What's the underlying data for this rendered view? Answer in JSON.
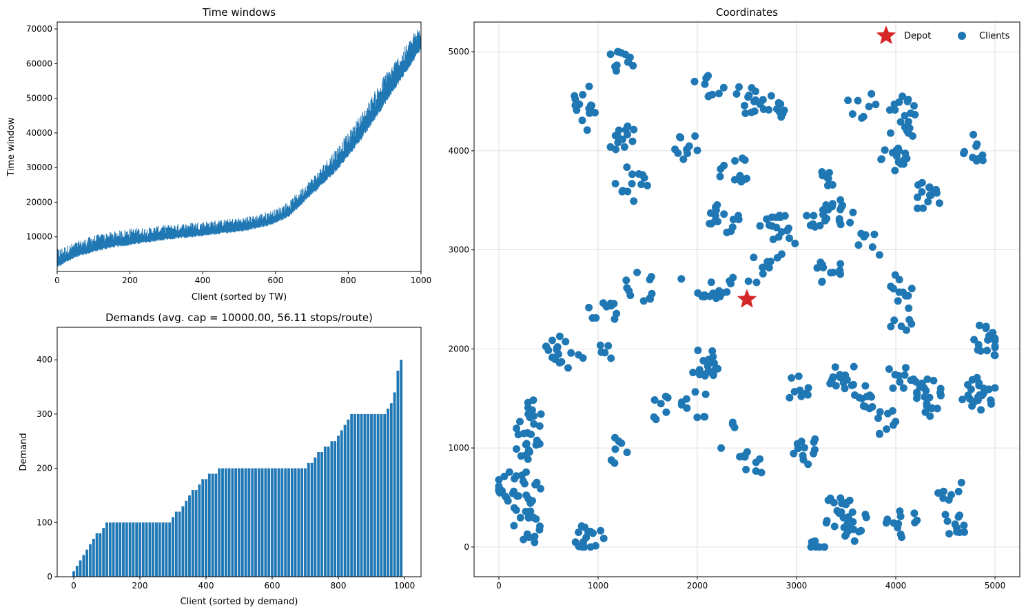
{
  "colors": {
    "series": "#1f77b4",
    "depot": "#d62728",
    "axis": "#000000"
  },
  "chart_data": [
    {
      "type": "line",
      "title": "Time windows",
      "xlabel": "Client (sorted by TW)",
      "ylabel": "Time window",
      "xlim": [
        0,
        1000
      ],
      "ylim": [
        0,
        72000
      ],
      "xticks": [
        "0",
        "200",
        "400",
        "600",
        "800",
        "1000"
      ],
      "yticks": [
        "10000",
        "20000",
        "30000",
        "40000",
        "50000",
        "60000",
        "70000"
      ],
      "grid": false,
      "series": [
        {
          "x": [
            0,
            50,
            100,
            150,
            200,
            250,
            300,
            350,
            400,
            450,
            500,
            550,
            600,
            640,
            680,
            720,
            760,
            800,
            850,
            900,
            950,
            1000
          ],
          "lower": [
            1000,
            4000,
            5500,
            6800,
            7500,
            8300,
            9000,
            9600,
            10200,
            10800,
            11400,
            12300,
            13800,
            16000,
            20000,
            24000,
            28000,
            33000,
            40000,
            48000,
            56000,
            64000
          ],
          "upper": [
            6500,
            8500,
            10500,
            11500,
            12500,
            12800,
            13500,
            14000,
            14500,
            15000,
            15500,
            16500,
            18000,
            20500,
            25000,
            29500,
            35000,
            40000,
            48000,
            57000,
            64000,
            72000
          ]
        }
      ]
    },
    {
      "type": "bar",
      "title": "Demands (avg. cap = 10000.00, 56.11 stops/route)",
      "xlabel": "Client (sorted by demand)",
      "ylabel": "Demand",
      "xlim": [
        -50,
        1050
      ],
      "ylim": [
        0,
        460
      ],
      "xticks": [
        "0",
        "200",
        "400",
        "600",
        "800",
        "1000"
      ],
      "yticks": [
        "0",
        "100",
        "200",
        "300",
        "400"
      ],
      "grid": false,
      "x": [
        0,
        10,
        20,
        30,
        40,
        50,
        60,
        70,
        80,
        90,
        100,
        110,
        120,
        130,
        140,
        150,
        160,
        170,
        180,
        190,
        200,
        210,
        220,
        230,
        240,
        250,
        260,
        270,
        280,
        290,
        300,
        310,
        320,
        330,
        340,
        350,
        360,
        370,
        380,
        390,
        400,
        410,
        420,
        430,
        440,
        450,
        460,
        470,
        480,
        490,
        500,
        510,
        520,
        530,
        540,
        550,
        560,
        570,
        580,
        590,
        600,
        610,
        620,
        630,
        640,
        650,
        660,
        670,
        680,
        690,
        700,
        710,
        720,
        730,
        740,
        750,
        760,
        770,
        780,
        790,
        800,
        810,
        820,
        830,
        840,
        850,
        860,
        870,
        880,
        890,
        900,
        910,
        920,
        930,
        940,
        950,
        960,
        970,
        980,
        990
      ],
      "values": [
        10,
        20,
        30,
        40,
        50,
        60,
        70,
        80,
        80,
        90,
        100,
        100,
        100,
        100,
        100,
        100,
        100,
        100,
        100,
        100,
        100,
        100,
        100,
        100,
        100,
        100,
        100,
        100,
        100,
        100,
        110,
        120,
        120,
        130,
        140,
        150,
        160,
        160,
        170,
        180,
        180,
        190,
        190,
        190,
        200,
        200,
        200,
        200,
        200,
        200,
        200,
        200,
        200,
        200,
        200,
        200,
        200,
        200,
        200,
        200,
        200,
        200,
        200,
        200,
        200,
        200,
        200,
        200,
        200,
        200,
        200,
        210,
        210,
        220,
        230,
        230,
        240,
        240,
        250,
        250,
        260,
        270,
        280,
        290,
        300,
        300,
        300,
        300,
        300,
        300,
        300,
        300,
        300,
        300,
        300,
        310,
        320,
        340,
        380,
        400
      ]
    },
    {
      "type": "scatter",
      "title": "Coordinates",
      "xlim": [
        -250,
        5250
      ],
      "ylim": [
        -300,
        5300
      ],
      "xticks": [
        "0",
        "1000",
        "2000",
        "3000",
        "4000",
        "5000"
      ],
      "yticks": [
        "0",
        "1000",
        "2000",
        "3000",
        "4000",
        "5000"
      ],
      "grid": true,
      "legend": "top-right",
      "series": [
        {
          "name": "Depot",
          "marker": "star",
          "points": [
            [
              2500,
              2500
            ]
          ]
        },
        {
          "name": "Clients",
          "marker": "circle",
          "points": []
        }
      ]
    }
  ]
}
